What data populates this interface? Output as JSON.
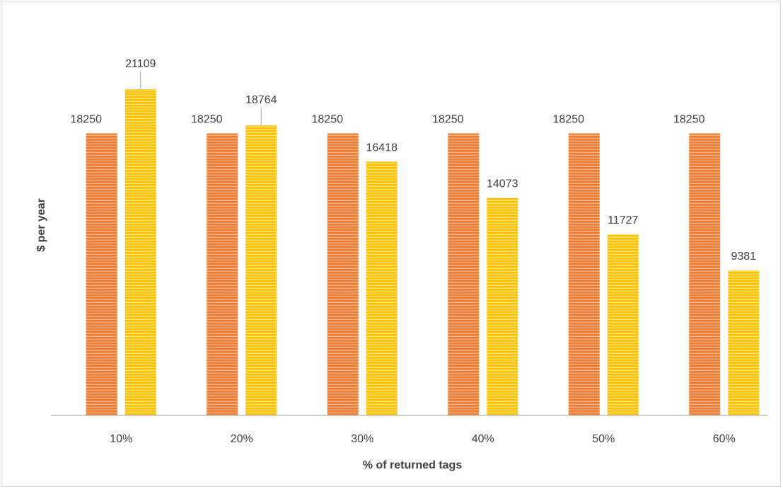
{
  "chart_data": {
    "type": "bar",
    "title": "",
    "xlabel": "% of returned tags",
    "ylabel": "$ per year",
    "categories": [
      "10%",
      "20%",
      "30%",
      "40%",
      "50%",
      "60%"
    ],
    "series": [
      {
        "values": [
          18250,
          18250,
          18250,
          18250,
          18250,
          18250
        ],
        "color": "#ED7D31"
      },
      {
        "values": [
          21109,
          18764,
          16418,
          14073,
          11727,
          9381
        ],
        "color": "#FFC000"
      }
    ],
    "ylim": [
      0,
      26000
    ],
    "grid": false,
    "legend": "none",
    "data_labels": true
  }
}
